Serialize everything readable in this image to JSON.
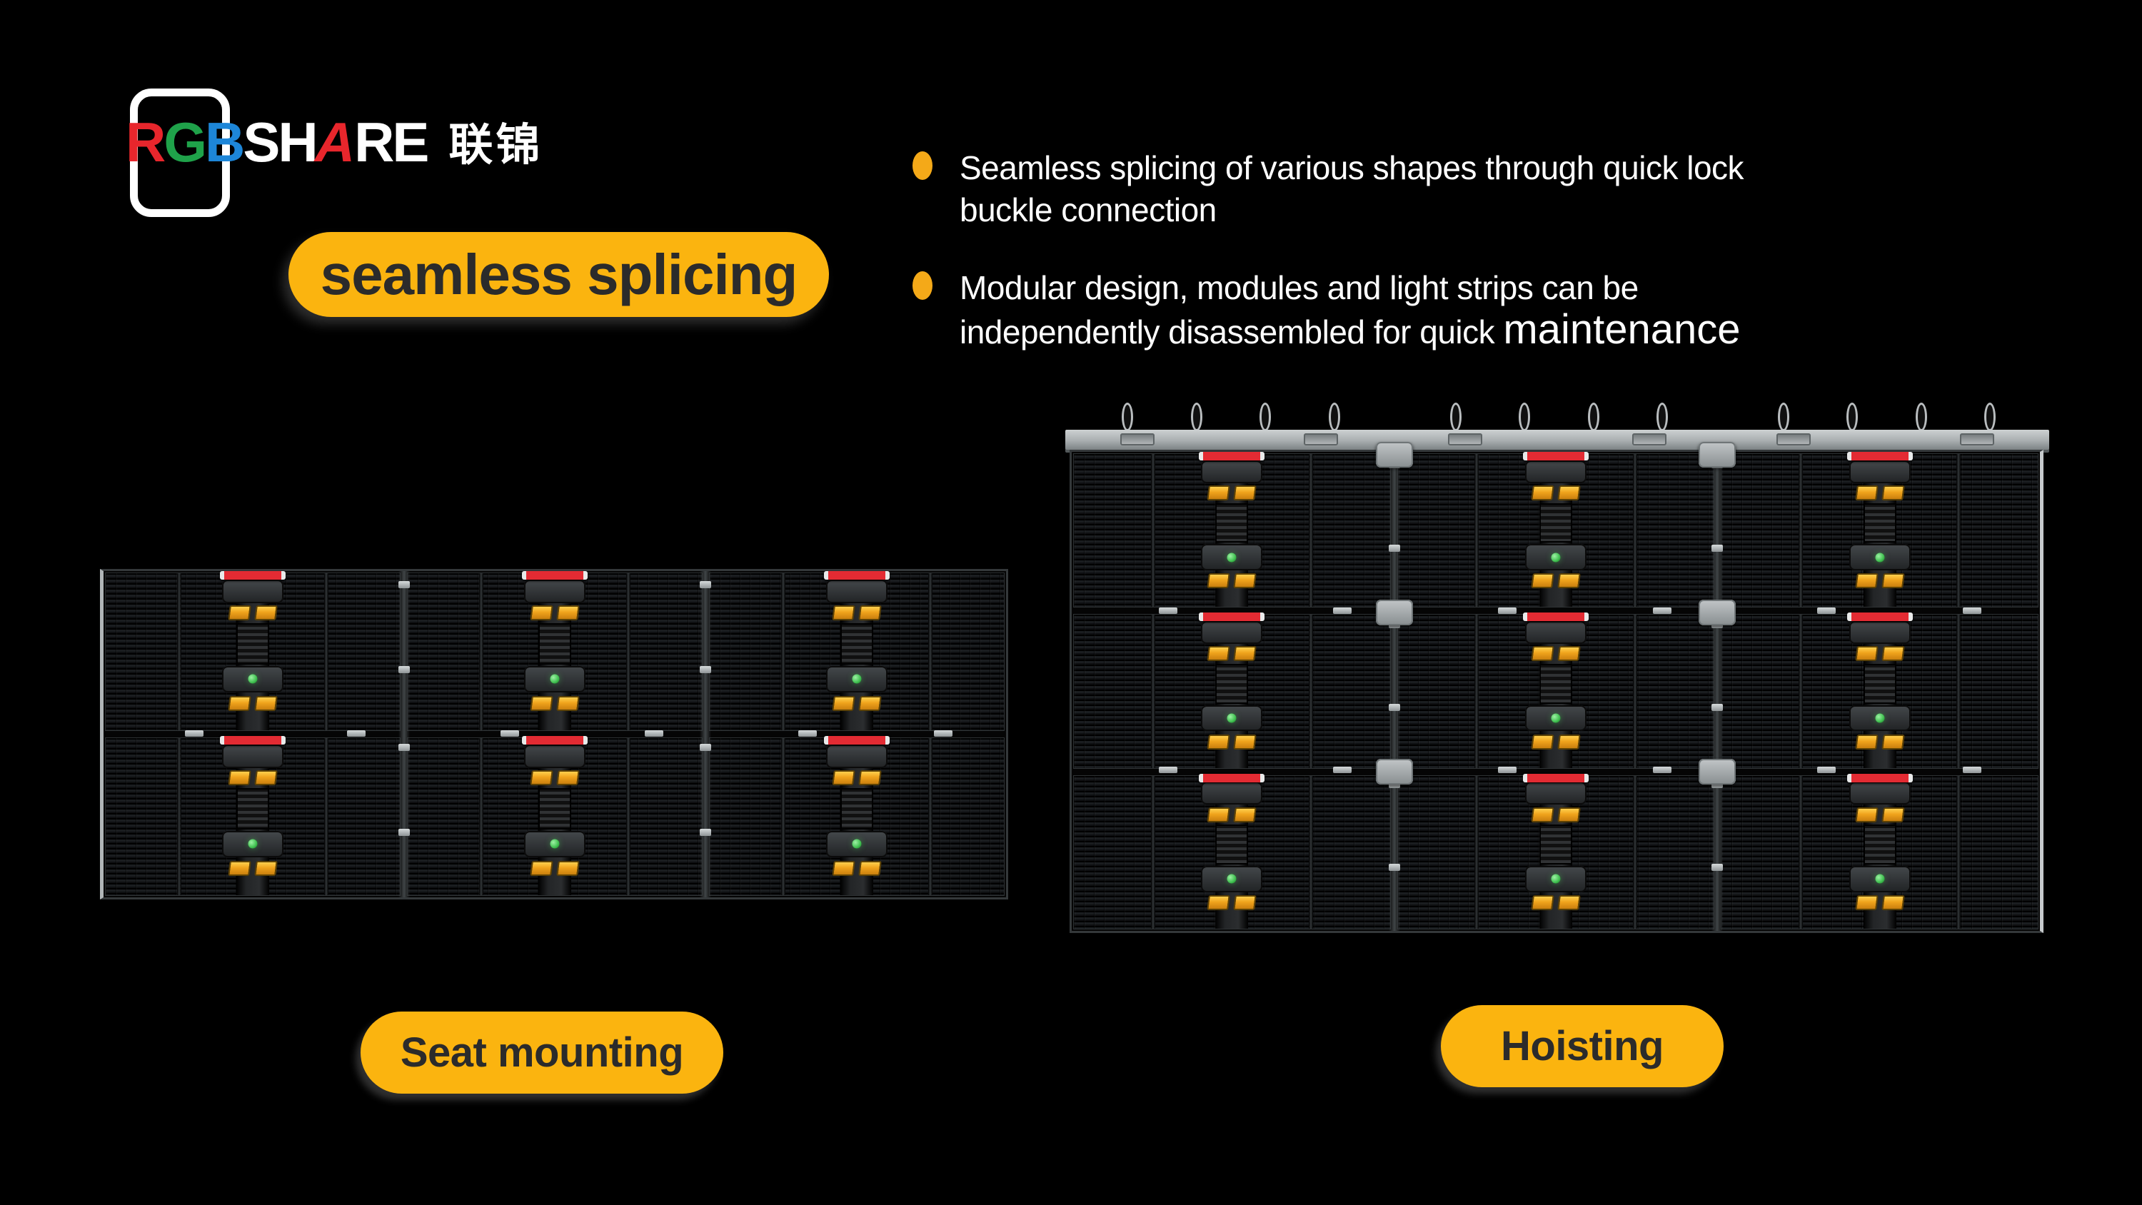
{
  "page": {
    "background": "#000000"
  },
  "logo": {
    "r": "R",
    "g": "G",
    "b": "B",
    "share_pre": "SH",
    "share_a": "A",
    "share_post": "RE",
    "cjk": "联锦"
  },
  "headline": {
    "label": "seamless splicing"
  },
  "bullets": [
    {
      "text": "Seamless splicing of various shapes through quick lock\nbuckle connection"
    },
    {
      "text_main": "Modular design, modules and light strips can be\nindependently disassembled for quick ",
      "text_emphasis": "maintenance"
    }
  ],
  "figures": [
    {
      "id": "seat-mounting",
      "caption": "Seat mounting",
      "columns": 3,
      "rows": 2,
      "hanging_bar": false,
      "hooks": 0,
      "plates": false
    },
    {
      "id": "hoisting",
      "caption": "Hoisting",
      "columns": 3,
      "rows": 3,
      "hanging_bar": true,
      "hooks": 12,
      "plates": true
    }
  ],
  "colors": {
    "accent_yellow": "#FBB40F",
    "bullet_orange": "#F4A918",
    "badge_text": "#2B2B2B",
    "body_text": "#FFFFFF",
    "logo_red": "#E8262C",
    "logo_green": "#1FA24A",
    "logo_blue": "#1D86D8",
    "cabinet_red": "#E32B33",
    "handle_yellow": "#F0A31C",
    "led_green": "#3FBF4F",
    "bar_gray": "#A9AEB0"
  }
}
